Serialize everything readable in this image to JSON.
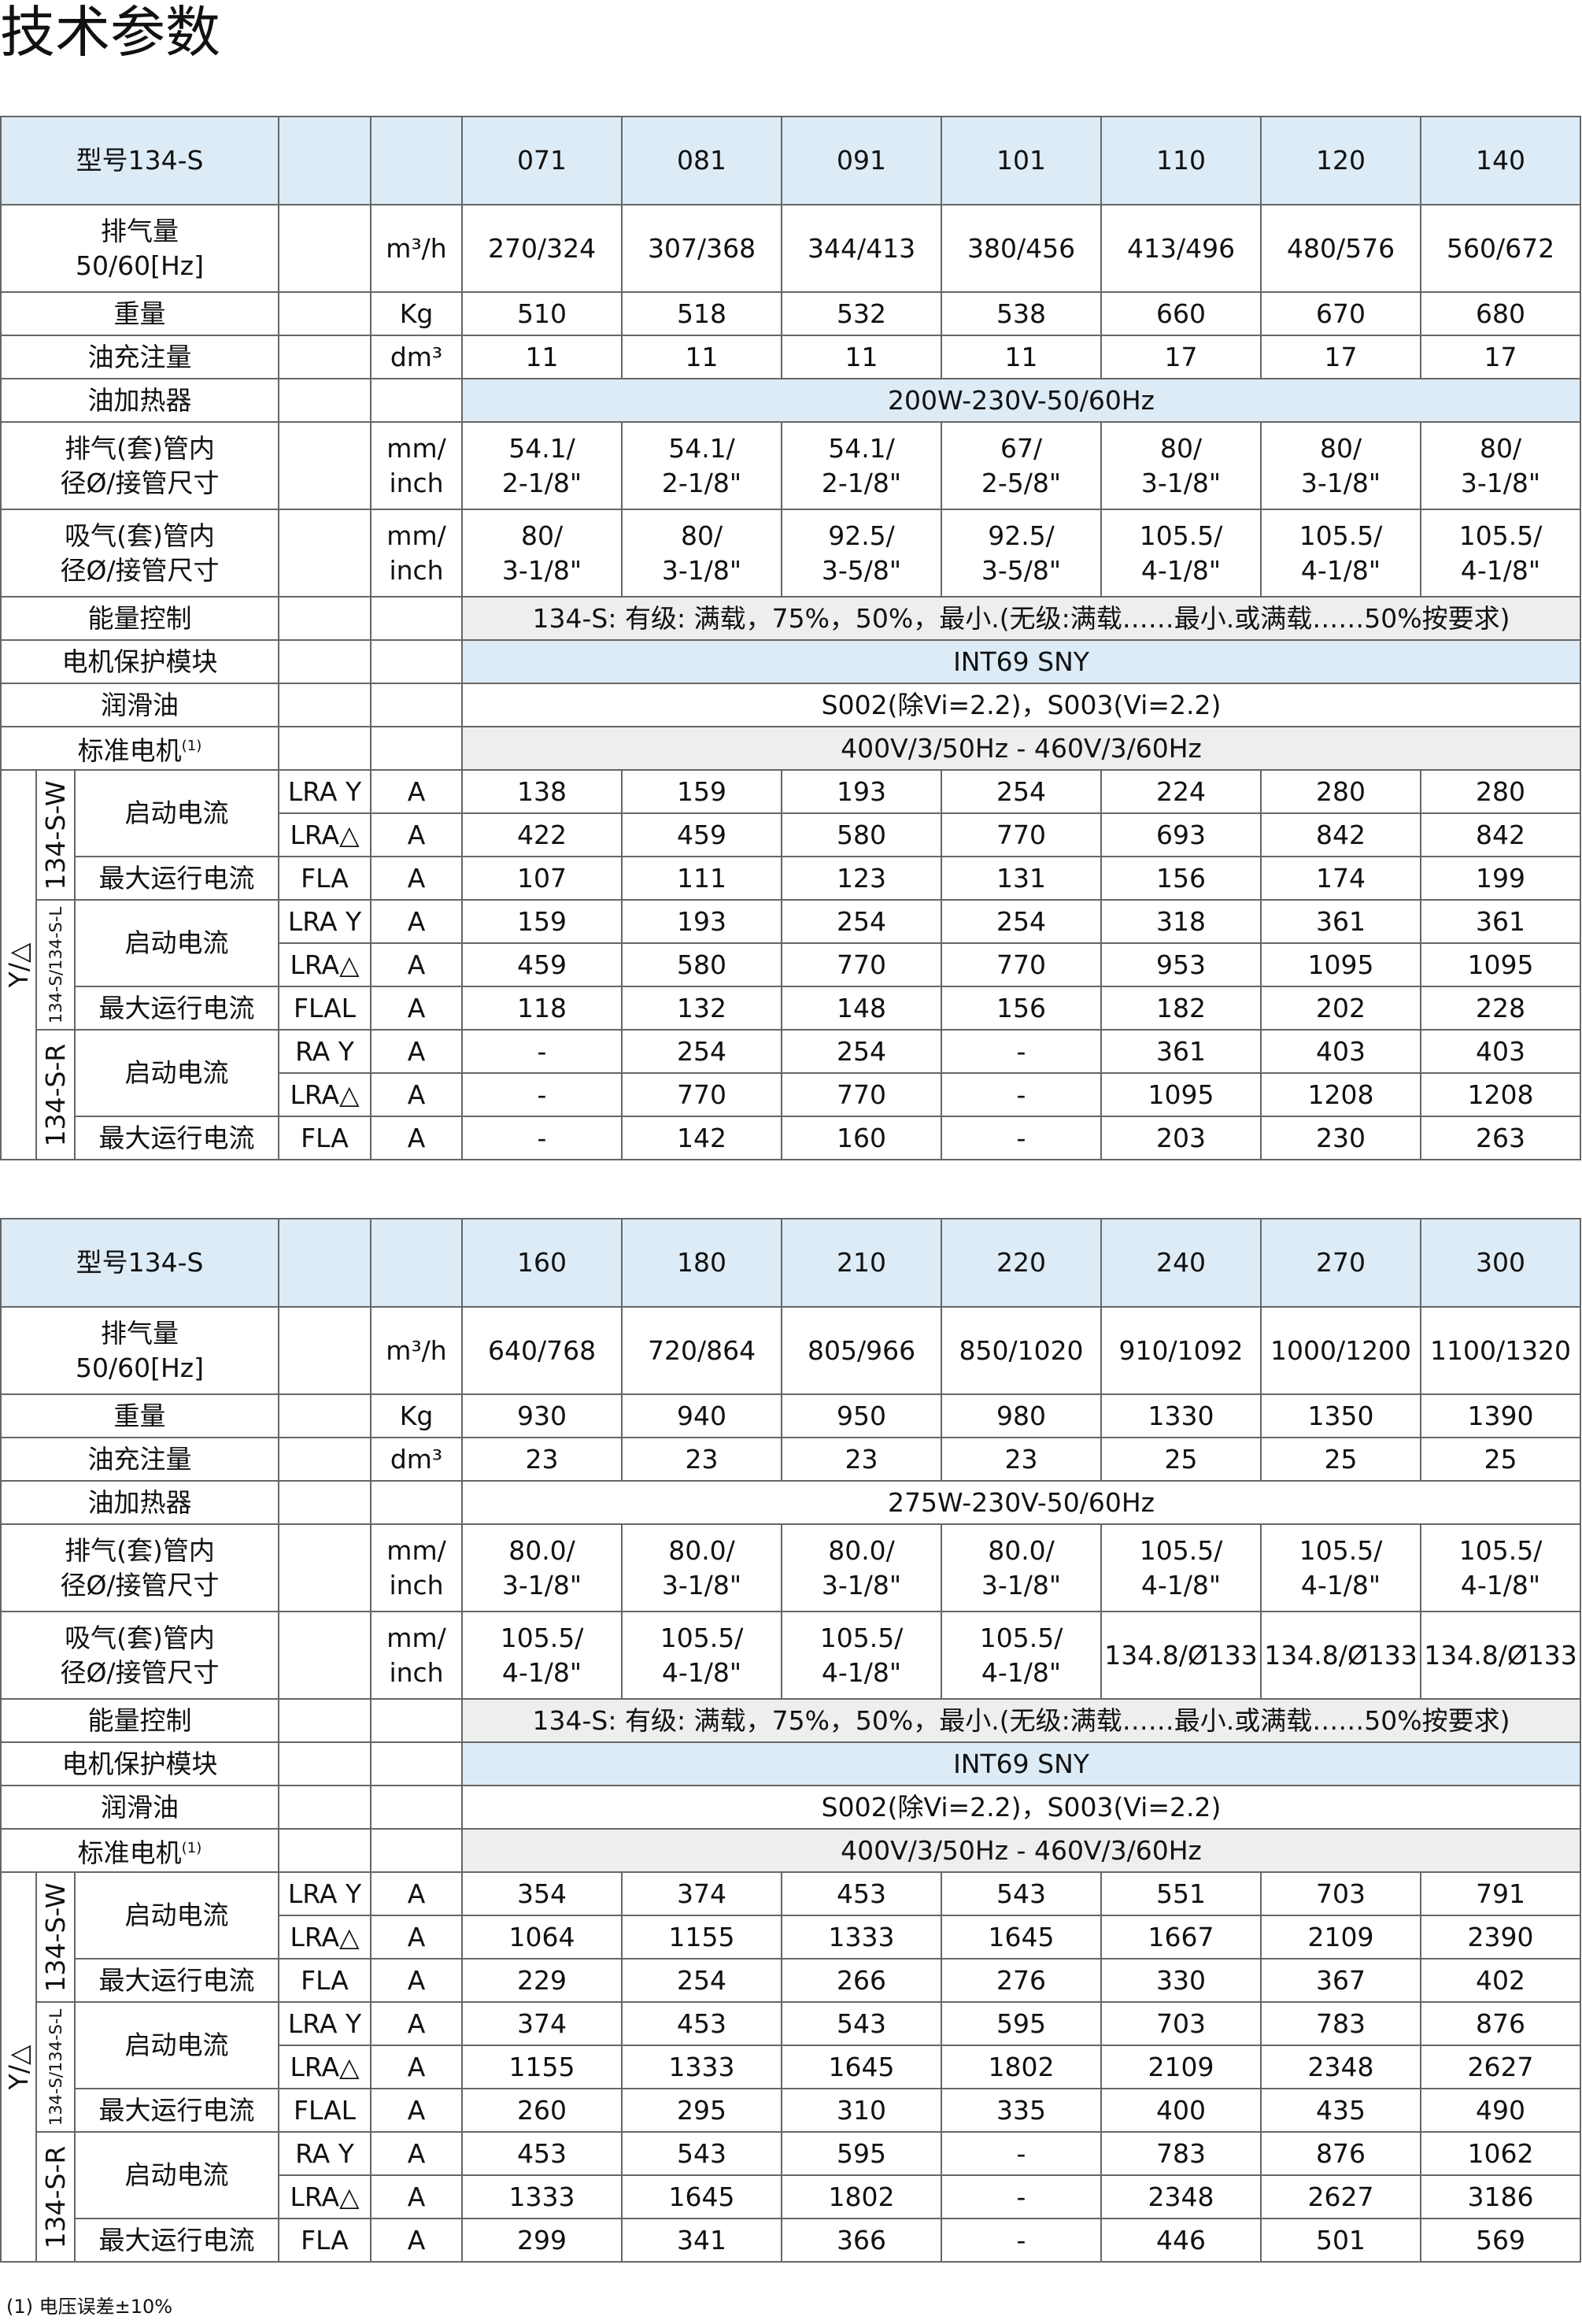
{
  "title": "技术参数",
  "footnote": "(1) 电压误差±10%",
  "labels": {
    "model": "型号134-S",
    "displacement": [
      "排气量",
      "50/60[Hz]"
    ],
    "weight": "重量",
    "oil_charge": "油充注量",
    "oil_heater": "油加热器",
    "discharge": [
      "排气(套)管内",
      "径Ø/接管尺寸"
    ],
    "suction": [
      "吸气(套)管内",
      "径Ø/接管尺寸"
    ],
    "capacity_control": "能量控制",
    "motor_protection": "电机保护模块",
    "lubricant": "润滑油",
    "standard_motor": "标准电机",
    "standard_motor_note": "(1)",
    "starting": "Y/△",
    "start_current": "启动电流",
    "max_current": "最大运行电流"
  },
  "units": {
    "displacement": "m³/h",
    "weight": "Kg",
    "oil_charge": "dm³",
    "pipe": [
      "mm/",
      "inch"
    ],
    "current": "A"
  },
  "shared": {
    "capacity_control": "134-S: 有级: 满载，75%，50%，最小.(无级:满载……最小.或满载……50%按要求)",
    "motor_protection": "INT69 SNY",
    "lubricant": "S002(除Vi=2.2)，S003(Vi=2.2)",
    "standard_motor": "400V/3/50Hz - 460V/3/60Hz"
  },
  "tables": [
    {
      "models": [
        "071",
        "081",
        "091",
        "101",
        "110",
        "120",
        "140"
      ],
      "displacement": [
        "270/324",
        "307/368",
        "344/413",
        "380/456",
        "413/496",
        "480/576",
        "560/672"
      ],
      "weight": [
        "510",
        "518",
        "532",
        "538",
        "660",
        "670",
        "680"
      ],
      "oil_charge": [
        "11",
        "11",
        "11",
        "11",
        "17",
        "17",
        "17"
      ],
      "oil_heater": "200W-230V-50/60Hz",
      "discharge": [
        [
          "54.1/",
          "2-1/8\""
        ],
        [
          "54.1/",
          "2-1/8\""
        ],
        [
          "54.1/",
          "2-1/8\""
        ],
        [
          "67/",
          "2-5/8\""
        ],
        [
          "80/",
          "3-1/8\""
        ],
        [
          "80/",
          "3-1/8\""
        ],
        [
          "80/",
          "3-1/8\""
        ]
      ],
      "suction": [
        [
          "80/",
          "3-1/8\""
        ],
        [
          "80/",
          "3-1/8\""
        ],
        [
          "92.5/",
          "3-5/8\""
        ],
        [
          "92.5/",
          "3-5/8\""
        ],
        [
          "105.5/",
          "4-1/8\""
        ],
        [
          "105.5/",
          "4-1/8\""
        ],
        [
          "105.5/",
          "4-1/8\""
        ]
      ],
      "motor_groups": [
        {
          "name": "134-S-W",
          "rows": [
            {
              "code": "LRA Y",
              "values": [
                "138",
                "159",
                "193",
                "254",
                "224",
                "280",
                "280"
              ]
            },
            {
              "code": "LRA△",
              "values": [
                "422",
                "459",
                "580",
                "770",
                "693",
                "842",
                "842"
              ]
            },
            {
              "code": "FLA",
              "values": [
                "107",
                "111",
                "123",
                "131",
                "156",
                "174",
                "199"
              ]
            }
          ]
        },
        {
          "name": "134-S/134-S-L",
          "rows": [
            {
              "code": "LRA Y",
              "values": [
                "159",
                "193",
                "254",
                "254",
                "318",
                "361",
                "361"
              ]
            },
            {
              "code": "LRA△",
              "values": [
                "459",
                "580",
                "770",
                "770",
                "953",
                "1095",
                "1095"
              ]
            },
            {
              "code": "FLAL",
              "values": [
                "118",
                "132",
                "148",
                "156",
                "182",
                "202",
                "228"
              ]
            }
          ]
        },
        {
          "name": "134-S-R",
          "rows": [
            {
              "code": "RA Y",
              "values": [
                "-",
                "254",
                "254",
                "-",
                "361",
                "403",
                "403"
              ]
            },
            {
              "code": "LRA△",
              "values": [
                "-",
                "770",
                "770",
                "-",
                "1095",
                "1208",
                "1208"
              ]
            },
            {
              "code": "FLA",
              "values": [
                "-",
                "142",
                "160",
                "-",
                "203",
                "230",
                "263"
              ]
            }
          ]
        }
      ]
    },
    {
      "models": [
        "160",
        "180",
        "210",
        "220",
        "240",
        "270",
        "300"
      ],
      "displacement": [
        "640/768",
        "720/864",
        "805/966",
        "850/1020",
        "910/1092",
        "1000/1200",
        "1100/1320"
      ],
      "weight": [
        "930",
        "940",
        "950",
        "980",
        "1330",
        "1350",
        "1390"
      ],
      "oil_charge": [
        "23",
        "23",
        "23",
        "23",
        "25",
        "25",
        "25"
      ],
      "oil_heater": "275W-230V-50/60Hz",
      "discharge": [
        [
          "80.0/",
          "3-1/8\""
        ],
        [
          "80.0/",
          "3-1/8\""
        ],
        [
          "80.0/",
          "3-1/8\""
        ],
        [
          "80.0/",
          "3-1/8\""
        ],
        [
          "105.5/",
          "4-1/8\""
        ],
        [
          "105.5/",
          "4-1/8\""
        ],
        [
          "105.5/",
          "4-1/8\""
        ]
      ],
      "suction": [
        [
          "105.5/",
          "4-1/8\""
        ],
        [
          "105.5/",
          "4-1/8\""
        ],
        [
          "105.5/",
          "4-1/8\""
        ],
        [
          "105.5/",
          "4-1/8\""
        ],
        [
          "134.8/Ø133"
        ],
        [
          "134.8/Ø133"
        ],
        [
          "134.8/Ø133"
        ]
      ],
      "motor_groups": [
        {
          "name": "134-S-W",
          "rows": [
            {
              "code": "LRA Y",
              "values": [
                "354",
                "374",
                "453",
                "543",
                "551",
                "703",
                "791"
              ]
            },
            {
              "code": "LRA△",
              "values": [
                "1064",
                "1155",
                "1333",
                "1645",
                "1667",
                "2109",
                "2390"
              ]
            },
            {
              "code": "FLA",
              "values": [
                "229",
                "254",
                "266",
                "276",
                "330",
                "367",
                "402"
              ]
            }
          ]
        },
        {
          "name": "134-S/134-S-L",
          "rows": [
            {
              "code": "LRA Y",
              "values": [
                "374",
                "453",
                "543",
                "595",
                "703",
                "783",
                "876"
              ]
            },
            {
              "code": "LRA△",
              "values": [
                "1155",
                "1333",
                "1645",
                "1802",
                "2109",
                "2348",
                "2627"
              ]
            },
            {
              "code": "FLAL",
              "values": [
                "260",
                "295",
                "310",
                "335",
                "400",
                "435",
                "490"
              ]
            }
          ]
        },
        {
          "name": "134-S-R",
          "rows": [
            {
              "code": "RA Y",
              "values": [
                "453",
                "543",
                "595",
                "-",
                "783",
                "876",
                "1062"
              ]
            },
            {
              "code": "LRA△",
              "values": [
                "1333",
                "1645",
                "1802",
                "-",
                "2348",
                "2627",
                "3186"
              ]
            },
            {
              "code": "FLA",
              "values": [
                "299",
                "341",
                "366",
                "-",
                "446",
                "501",
                "569"
              ]
            }
          ]
        }
      ]
    }
  ],
  "colors": {
    "header_bg": "#ddebf6",
    "gray_bg": "#edeeee",
    "border": "#666666"
  }
}
